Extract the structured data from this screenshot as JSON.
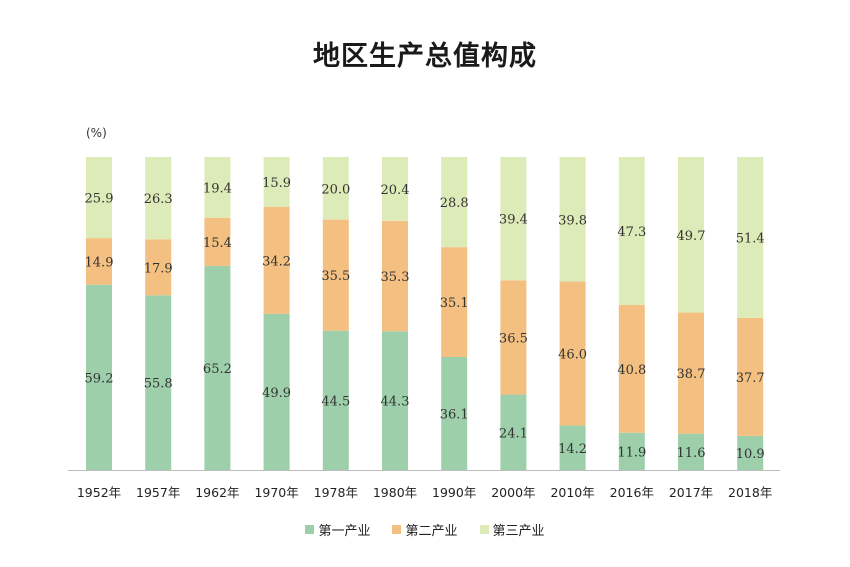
{
  "chart_data": {
    "type": "bar",
    "stacked": true,
    "title": "地区生产总值构成",
    "unit": "(%)",
    "categories": [
      "1952年",
      "1957年",
      "1962年",
      "1970年",
      "1978年",
      "1980年",
      "1990年",
      "2000年",
      "2010年",
      "2016年",
      "2017年",
      "2018年"
    ],
    "series": [
      {
        "name": "第一产业",
        "color": "#9ccfaa",
        "values": [
          59.2,
          55.8,
          65.2,
          49.9,
          44.5,
          44.3,
          36.1,
          24.1,
          14.2,
          11.9,
          11.6,
          10.9
        ]
      },
      {
        "name": "第二产业",
        "color": "#f4c081",
        "values": [
          14.9,
          17.9,
          15.4,
          34.2,
          35.5,
          35.3,
          35.1,
          36.5,
          46.0,
          40.8,
          38.7,
          37.7
        ]
      },
      {
        "name": "第三产业",
        "color": "#ddebb8",
        "values": [
          25.9,
          26.3,
          19.4,
          15.9,
          20.0,
          20.4,
          28.8,
          39.4,
          39.8,
          47.3,
          49.7,
          51.4
        ]
      }
    ],
    "value_labels": [
      [
        "59.2",
        "55.8",
        "65.2",
        "49.9",
        "44.5",
        "44.3",
        "36.1",
        "24.1",
        "14.2",
        "11.9",
        "11.6",
        "10.9"
      ],
      [
        "14.9",
        "17.9",
        "15.4",
        "34.2",
        "35.5",
        "35.3",
        "35.1",
        "36.5",
        "46.0",
        "40.8",
        "38.7",
        "37.7"
      ],
      [
        "25.9",
        "26.3",
        "19.4",
        "15.9",
        "20.0",
        "20.4",
        "28.8",
        "39.4",
        "39.8",
        "47.3",
        "49.7",
        "51.4"
      ]
    ],
    "ylim": [
      0,
      100
    ],
    "legend_position": "bottom",
    "grid": false
  }
}
